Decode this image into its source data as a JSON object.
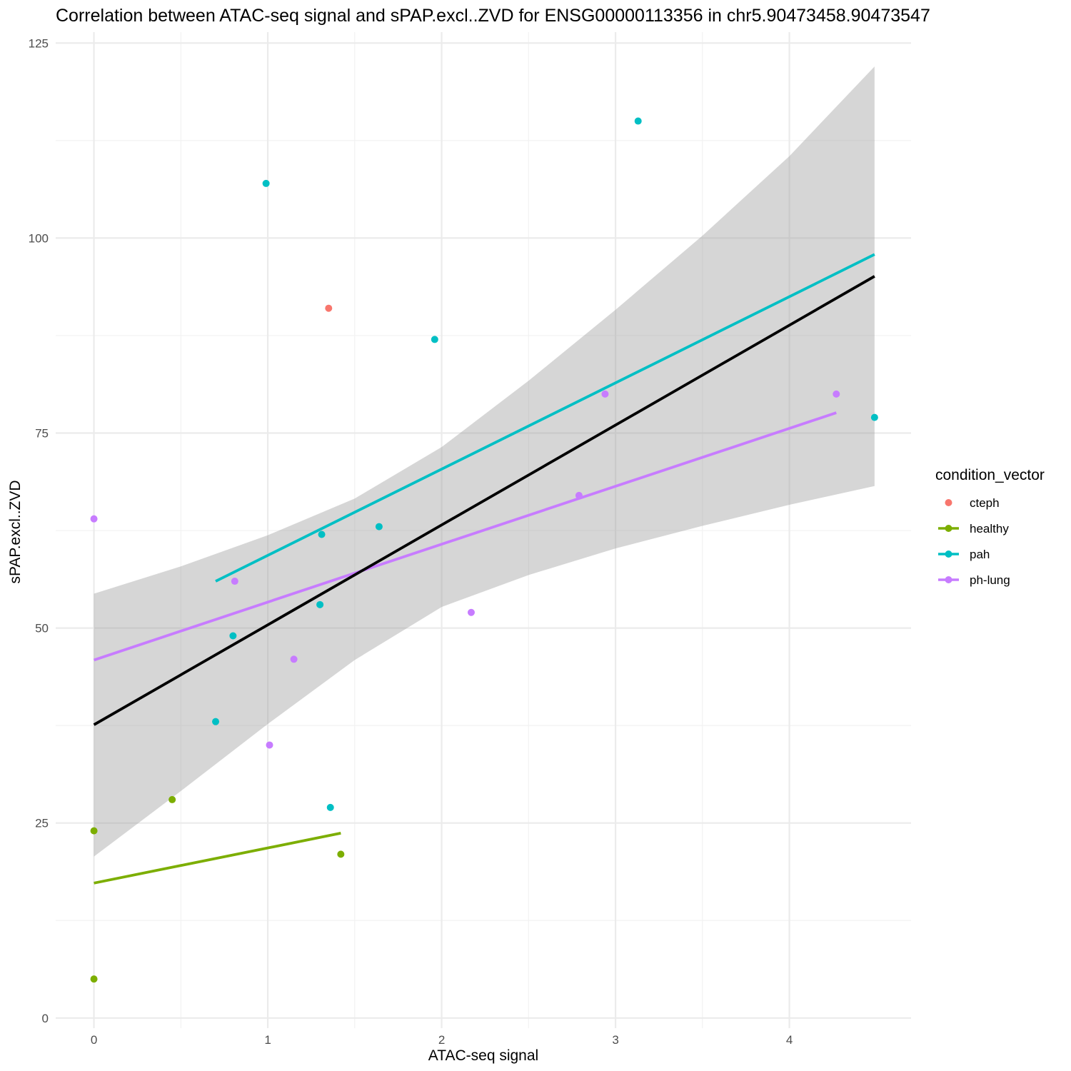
{
  "chart_data": {
    "type": "scatter",
    "title": "Correlation between ATAC-seq signal and sPAP.excl..ZVD for ENSG00000113356 in chr5.90473458.90473547",
    "xlabel": "ATAC-seq signal",
    "ylabel": "sPAP.excl..ZVD",
    "xlim": [
      -0.22,
      4.7
    ],
    "ylim": [
      -1.3,
      126.4
    ],
    "x_ticks": [
      0,
      1,
      2,
      3,
      4
    ],
    "y_ticks": [
      0,
      25,
      50,
      75,
      100,
      125
    ],
    "grid": true,
    "legend": {
      "title": "condition_vector",
      "placement": "right"
    },
    "colors": {
      "cteph": "#F8766D",
      "healthy": "#7CAE00",
      "pah": "#00BFC4",
      "ph-lung": "#C77CFF",
      "overall": "#000000",
      "band": "#999999"
    },
    "series": [
      {
        "name": "cteph",
        "points": [
          [
            1.35,
            91
          ]
        ]
      },
      {
        "name": "healthy",
        "points": [
          [
            0,
            24
          ],
          [
            0.45,
            28
          ],
          [
            1.42,
            21
          ],
          [
            0,
            5
          ]
        ],
        "fit": [
          [
            0,
            17.3
          ],
          [
            1.42,
            23.7
          ]
        ]
      },
      {
        "name": "pah",
        "points": [
          [
            0.99,
            107
          ],
          [
            3.13,
            115
          ],
          [
            1.96,
            87
          ],
          [
            4.49,
            77
          ],
          [
            1.31,
            62
          ],
          [
            1.64,
            63
          ],
          [
            1.3,
            53
          ],
          [
            0.8,
            49
          ],
          [
            0.7,
            38
          ],
          [
            1.36,
            27
          ]
        ],
        "fit": [
          [
            0.7,
            56
          ],
          [
            4.49,
            97.9
          ]
        ]
      },
      {
        "name": "ph-lung",
        "points": [
          [
            0,
            64
          ],
          [
            0.81,
            56
          ],
          [
            1.15,
            46
          ],
          [
            1.01,
            35
          ],
          [
            2.17,
            52
          ],
          [
            2.79,
            67
          ],
          [
            2.94,
            80
          ],
          [
            4.27,
            80
          ]
        ],
        "fit": [
          [
            0,
            45.9
          ],
          [
            4.27,
            77.6
          ]
        ]
      }
    ],
    "overall_fit": {
      "line": [
        [
          0,
          37.6
        ],
        [
          4.49,
          95.1
        ]
      ],
      "ci_x": [
        0,
        0.5,
        1,
        1.5,
        2,
        2.5,
        3,
        3.5,
        4,
        4.49
      ],
      "ci_upper": [
        54.4,
        57.9,
        61.9,
        66.6,
        73.2,
        81.7,
        90.8,
        100.3,
        110.5,
        122
      ],
      "ci_lower": [
        20.7,
        29.1,
        37.7,
        45.9,
        52.7,
        56.8,
        60.2,
        63.1,
        65.8,
        68.2
      ]
    }
  }
}
